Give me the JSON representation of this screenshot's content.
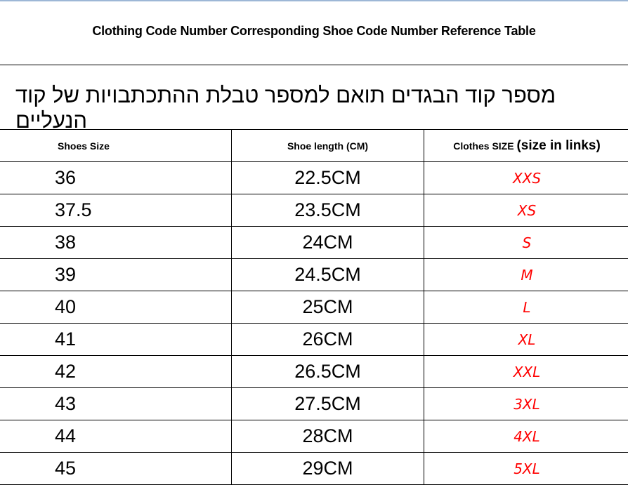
{
  "title": "Clothing Code Number Corresponding Shoe Code Number Reference Table",
  "hebrew_title": "מספר קוד הבגדים תואם למספר טבלת ההתכתבויות של קוד הנעליים",
  "headers": {
    "shoes_size": "Shoes Size",
    "shoe_length": "Shoe length (CM)",
    "clothes_size": "Clothes SIZE",
    "clothes_size_note": "(size in links)"
  },
  "accent_color": "#ff0000",
  "rows": [
    {
      "shoe": "36",
      "length": "22.5CM",
      "clothes": "XXS"
    },
    {
      "shoe": "37.5",
      "length": "23.5CM",
      "clothes": "XS"
    },
    {
      "shoe": "38",
      "length": "24CM",
      "clothes": "S"
    },
    {
      "shoe": "39",
      "length": "24.5CM",
      "clothes": "M"
    },
    {
      "shoe": "40",
      "length": "25CM",
      "clothes": "L"
    },
    {
      "shoe": "41",
      "length": "26CM",
      "clothes": "XL"
    },
    {
      "shoe": "42",
      "length": "26.5CM",
      "clothes": "XXL"
    },
    {
      "shoe": "43",
      "length": "27.5CM",
      "clothes": "3XL"
    },
    {
      "shoe": "44",
      "length": "28CM",
      "clothes": "4XL"
    },
    {
      "shoe": "45",
      "length": "29CM",
      "clothes": "5XL"
    }
  ]
}
